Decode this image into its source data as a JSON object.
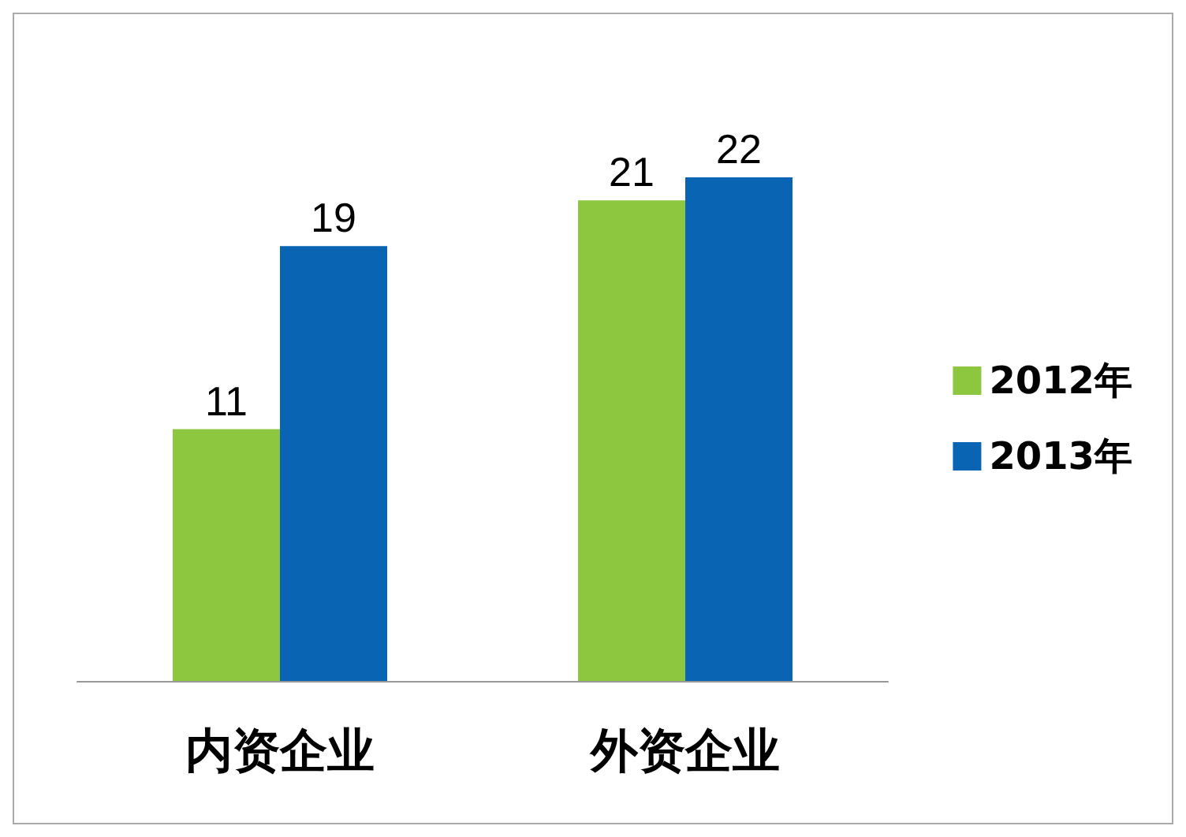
{
  "chart_data": {
    "type": "bar",
    "categories": [
      "内资企业",
      "外资企业"
    ],
    "series": [
      {
        "name": "2012年",
        "color": "#8dc63f",
        "values": [
          11,
          21
        ]
      },
      {
        "name": "2013年",
        "color": "#0a64b4",
        "values": [
          19,
          22
        ]
      }
    ],
    "data_labels": true,
    "legend": "right"
  }
}
